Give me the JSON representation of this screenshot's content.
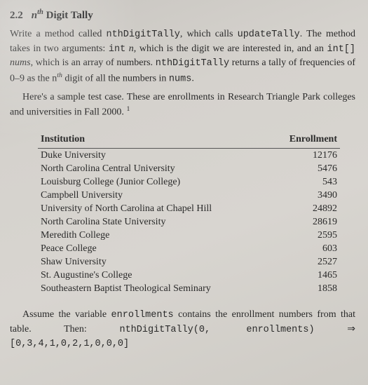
{
  "section": {
    "number": "2.2",
    "title_prefix": "n",
    "title_sup": "th",
    "title_rest": " Digit Tally"
  },
  "para1": {
    "t1": "Write a method called ",
    "c1": "nthDigitTally",
    "t2": ", which calls ",
    "c2": "updateTally",
    "t3": ".  The method takes in two arguments: ",
    "c3": "int",
    "t4": " n, which is the digit we are interested in, and an ",
    "c4": "int[]",
    "t5": " nums, which is an array of numbers. ",
    "c5": "nthDigitTally",
    "t6": " returns a tally of frequencies of 0–9 as the n",
    "sup": "th",
    "t7": " digit of all the numbers in ",
    "c6": "nums",
    "t8": "."
  },
  "para2": {
    "t1": "Here's a sample test case. These are enrollments in Research Triangle Park colleges and universities in Fall 2000.",
    "foot": "1"
  },
  "table": {
    "headers": {
      "inst": "Institution",
      "enr": "Enrollment"
    },
    "rows": [
      {
        "inst": "Duke University",
        "enr": "12176"
      },
      {
        "inst": "North Carolina Central University",
        "enr": "5476"
      },
      {
        "inst": "Louisburg College (Junior College)",
        "enr": "543"
      },
      {
        "inst": "Campbell University",
        "enr": "3490"
      },
      {
        "inst": "University of North Carolina at Chapel Hill",
        "enr": "24892"
      },
      {
        "inst": "North Carolina State University",
        "enr": "28619"
      },
      {
        "inst": "Meredith College",
        "enr": "2595"
      },
      {
        "inst": "Peace College",
        "enr": "603"
      },
      {
        "inst": "Shaw University",
        "enr": "2527"
      },
      {
        "inst": "St. Augustine's College",
        "enr": "1465"
      },
      {
        "inst": "Southeastern Baptist Theological Seminary",
        "enr": "1858"
      }
    ]
  },
  "para3": {
    "t1": "Assume the variable ",
    "c1": "enrollments",
    "t2": " contains the enrollment numbers from that table. Then: ",
    "c2": "nthDigitTally(0, enrollments)",
    "t3": " ⇒ ",
    "c3": "[0,3,4,1,0,2,1,0,0,0]"
  },
  "style": {
    "text_color": "#2a2a2a",
    "bg_tint": "#d2cfc9",
    "rule_color": "#555555",
    "mono_font": "Courier New",
    "serif_font": "Georgia"
  }
}
